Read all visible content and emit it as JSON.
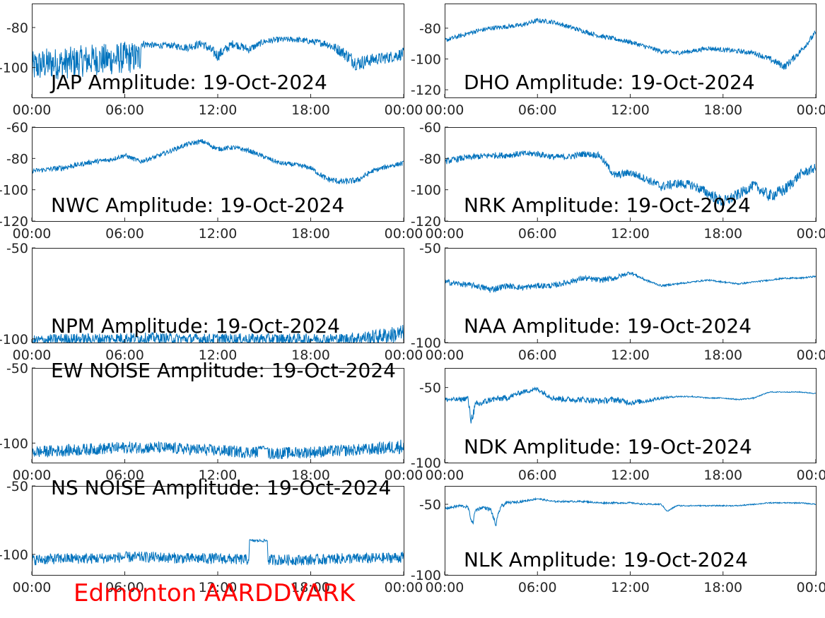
{
  "caption": "Edmonton AARDDVARK",
  "colors": {
    "series": "#0072bd",
    "caption": "#ff0000",
    "axis": "#262626"
  },
  "chart_data": [
    {
      "type": "line",
      "title": "JAP Amplitude: 19-Oct-2024",
      "xticks": [
        "00:00",
        "06:00",
        "12:00",
        "18:00",
        "00:00"
      ],
      "yticks": [
        "-80",
        "-100"
      ],
      "ylim": [
        -115,
        -68
      ],
      "series": [
        {
          "x": [
            0,
            0.5,
            1,
            2,
            3,
            4,
            5,
            6,
            7,
            7.05,
            8,
            9,
            10,
            11,
            12,
            13,
            14,
            15,
            16,
            17,
            18,
            19,
            20,
            21,
            22,
            23,
            24
          ],
          "y": [
            -100,
            -99,
            -98,
            -98,
            -97,
            -96,
            -96,
            -95,
            -95,
            -88,
            -89,
            -89,
            -90,
            -88,
            -94,
            -88,
            -91,
            -87,
            -86,
            -86,
            -87,
            -88,
            -92,
            -98,
            -96,
            -95,
            -93
          ],
          "noise": [
            8,
            8,
            8,
            8,
            8,
            8,
            8,
            8,
            8,
            2,
            1.5,
            1.5,
            2,
            2,
            3,
            2,
            2,
            1.5,
            1.5,
            1.5,
            1.5,
            2,
            3,
            4,
            3,
            3,
            3
          ]
        }
      ]
    },
    {
      "type": "line",
      "title": "DHO Amplitude: 19-Oct-2024",
      "xticks": [
        "00:00",
        "06:00",
        "12:00",
        "18:00",
        "00:00"
      ],
      "yticks": [
        "-80",
        "-100",
        "-120"
      ],
      "ylim": [
        -125,
        -64
      ],
      "series": [
        {
          "x": [
            0,
            1,
            2,
            3,
            4,
            5,
            6,
            7,
            8,
            9,
            10,
            11,
            12,
            13,
            14,
            15,
            16,
            17,
            18,
            19,
            20,
            21,
            22,
            23,
            24
          ],
          "y": [
            -88,
            -85,
            -82,
            -80,
            -79,
            -78,
            -75,
            -76,
            -79,
            -82,
            -85,
            -87,
            -89,
            -92,
            -95,
            -96,
            -95,
            -93,
            -94,
            -95,
            -96,
            -100,
            -105,
            -95,
            -83
          ],
          "noise": [
            1.5,
            1.5,
            1.5,
            1.5,
            1.5,
            1.5,
            1.5,
            1.5,
            1.5,
            1.5,
            1.5,
            1.5,
            1.5,
            1.5,
            1.5,
            1.5,
            1.5,
            1.5,
            1.5,
            1.5,
            1.5,
            2,
            2.5,
            2,
            2
          ]
        }
      ]
    },
    {
      "type": "line",
      "title": "NWC Amplitude: 19-Oct-2024",
      "xticks": [
        "00:00",
        "06:00",
        "12:00",
        "18:00",
        "00:00"
      ],
      "yticks": [
        "-60",
        "-80",
        "-100",
        "-120"
      ],
      "ylim": [
        -120,
        -60
      ],
      "series": [
        {
          "x": [
            0,
            1,
            2,
            3,
            4,
            5,
            6,
            7,
            8,
            9,
            10,
            11,
            12,
            13,
            14,
            15,
            16,
            17,
            18,
            19,
            20,
            21,
            22,
            23,
            24
          ],
          "y": [
            -88,
            -87,
            -86,
            -84,
            -82,
            -81,
            -78,
            -82,
            -79,
            -75,
            -71,
            -69,
            -74,
            -73,
            -75,
            -79,
            -83,
            -84,
            -86,
            -93,
            -95,
            -94,
            -88,
            -85,
            -83
          ],
          "noise": [
            1.5,
            1.5,
            2,
            1.5,
            1.5,
            1.5,
            1.5,
            1.5,
            1.5,
            1.5,
            1.5,
            1.5,
            1.5,
            1.5,
            1.5,
            1.5,
            1.5,
            1.5,
            1.5,
            2,
            2,
            2,
            1.5,
            1.5,
            1.5
          ]
        }
      ]
    },
    {
      "type": "line",
      "title": "NRK Amplitude: 19-Oct-2024",
      "xticks": [
        "00:00",
        "06:00",
        "12:00",
        "18:00",
        "00:00"
      ],
      "yticks": [
        "-60",
        "-80",
        "-100",
        "-120"
      ],
      "ylim": [
        -120,
        -60
      ],
      "series": [
        {
          "x": [
            0,
            1,
            2,
            3,
            4,
            5,
            6,
            7,
            8,
            9,
            10,
            11,
            12,
            13,
            14,
            15,
            16,
            17,
            18,
            19,
            20,
            21,
            22,
            23,
            24
          ],
          "y": [
            -82,
            -80,
            -79,
            -78,
            -78,
            -77,
            -77,
            -79,
            -79,
            -77,
            -78,
            -91,
            -89,
            -93,
            -98,
            -96,
            -97,
            -102,
            -108,
            -103,
            -97,
            -104,
            -100,
            -90,
            -86
          ],
          "noise": [
            2,
            2,
            2,
            2,
            2,
            2,
            2,
            2,
            2,
            2,
            2,
            2.5,
            2.5,
            2.5,
            3,
            3,
            3,
            3.5,
            4,
            3.5,
            3,
            4,
            4,
            3,
            3
          ]
        }
      ]
    },
    {
      "type": "line",
      "title": "NPM Amplitude: 19-Oct-2024",
      "xticks": [
        "00:00",
        "06:00",
        "12:00",
        "18:00",
        "00:00"
      ],
      "yticks": [
        "-50",
        "-100"
      ],
      "ylim": [
        -102,
        -50
      ],
      "series": [
        {
          "x": [
            0,
            2,
            4,
            6,
            8,
            10,
            12,
            14,
            16,
            18,
            20,
            22,
            24
          ],
          "y": [
            -101,
            -100,
            -100,
            -99.5,
            -99.5,
            -100,
            -100,
            -100,
            -100,
            -100,
            -100,
            -99,
            -97
          ],
          "noise": [
            3,
            3,
            3,
            3,
            3,
            3,
            3,
            3,
            3,
            3,
            3,
            4,
            5
          ]
        }
      ]
    },
    {
      "type": "line",
      "title": "NAA Amplitude: 19-Oct-2024",
      "xticks": [
        "00:00",
        "06:00",
        "12:00",
        "18:00",
        "00:00"
      ],
      "yticks": [
        "-50",
        "-100"
      ],
      "ylim": [
        -100,
        -50
      ],
      "series": [
        {
          "x": [
            0,
            1,
            2,
            3,
            4,
            5,
            6,
            7,
            8,
            9,
            10,
            11,
            12,
            13,
            14,
            15,
            16,
            17,
            18,
            19,
            20,
            21,
            22,
            23,
            24
          ],
          "y": [
            -68,
            -69,
            -70,
            -72,
            -70,
            -71,
            -70,
            -70,
            -68,
            -66,
            -67,
            -66,
            -63,
            -67,
            -70,
            -69,
            -68,
            -67,
            -68,
            -69,
            -68,
            -67,
            -66,
            -66,
            -65
          ],
          "noise": [
            1.5,
            1.5,
            1.5,
            2,
            1.5,
            1.5,
            1.5,
            1.5,
            1.5,
            1.5,
            1.5,
            1.5,
            1,
            0.6,
            0.5,
            0.5,
            0.4,
            0.4,
            0.4,
            0.4,
            0.4,
            0.4,
            0.4,
            0.4,
            0.4
          ]
        }
      ]
    },
    {
      "type": "line",
      "title": "EW NOISE Amplitude: 19-Oct-2024",
      "xticks": [
        "00:00",
        "06:00",
        "12:00",
        "18:00",
        "00:00"
      ],
      "yticks": [
        "-50",
        "-100"
      ],
      "ylim": [
        -113,
        -50
      ],
      "series": [
        {
          "x": [
            0,
            2,
            4,
            6,
            8,
            10,
            12,
            14,
            14.6,
            14.65,
            15.2,
            15.25,
            18,
            20,
            22,
            24
          ],
          "y": [
            -106,
            -105,
            -104,
            -103,
            -103,
            -104,
            -105,
            -106,
            -106,
            -103,
            -103,
            -107,
            -106,
            -105,
            -104,
            -102
          ],
          "noise": [
            4,
            4,
            4,
            4,
            4,
            4,
            4,
            4,
            4,
            1,
            1,
            4,
            4,
            4,
            4,
            5
          ]
        }
      ]
    },
    {
      "type": "line",
      "title": "NDK Amplitude: 19-Oct-2024",
      "xticks": [
        "00:00",
        "06:00",
        "12:00",
        "18:00",
        "00:00"
      ],
      "yticks": [
        "-50",
        "-100"
      ],
      "ylim": [
        -100,
        -37
      ],
      "series": [
        {
          "x": [
            0,
            1,
            1.5,
            1.7,
            2,
            2.5,
            3,
            4,
            5,
            6,
            7,
            8,
            9,
            10,
            11,
            12,
            13,
            14,
            15,
            16,
            17,
            18,
            19,
            20,
            21,
            22,
            23,
            24
          ],
          "y": [
            -58,
            -58,
            -57,
            -72,
            -62,
            -60,
            -58,
            -57,
            -53,
            -51,
            -57,
            -58,
            -58,
            -59,
            -58,
            -60,
            -59,
            -57,
            -56,
            -56,
            -57,
            -57,
            -58,
            -57,
            -53,
            -53,
            -53,
            -54
          ],
          "noise": [
            1.5,
            1.5,
            2,
            3,
            3,
            2.5,
            2,
            2,
            1.5,
            1.5,
            2,
            2,
            2,
            2,
            2,
            2,
            1.5,
            1,
            0.5,
            0.5,
            0.4,
            0.4,
            0.4,
            0.4,
            0.3,
            0.3,
            0.3,
            0.3
          ]
        }
      ]
    },
    {
      "type": "line",
      "title": "NS NOISE Amplitude: 19-Oct-2024",
      "xticks": [
        "00:00",
        "06:00",
        "12:00",
        "18:00",
        "00:00"
      ],
      "yticks": [
        "-50",
        "-100"
      ],
      "ylim": [
        -115,
        -50
      ],
      "series": [
        {
          "x": [
            0,
            2,
            4,
            6,
            8,
            10,
            12,
            14,
            14.05,
            14.6,
            14.65,
            15.2,
            15.25,
            18,
            20,
            22,
            24
          ],
          "y": [
            -104,
            -103,
            -103,
            -102,
            -102,
            -103,
            -103,
            -104,
            -90,
            -90,
            -90,
            -90,
            -104,
            -104,
            -103,
            -103,
            -102
          ],
          "noise": [
            4,
            4,
            4,
            4,
            4,
            4,
            4,
            4,
            1,
            1,
            1,
            1,
            4,
            4,
            4,
            4,
            4
          ]
        }
      ]
    },
    {
      "type": "line",
      "title": "NLK Amplitude: 19-Oct-2024",
      "xticks": [
        "00:00",
        "06:00",
        "12:00",
        "18:00",
        "00:00"
      ],
      "yticks": [
        "-50",
        "-100"
      ],
      "ylim": [
        -100,
        -37
      ],
      "series": [
        {
          "x": [
            0,
            1,
            1.5,
            1.8,
            2,
            2.5,
            3,
            3.3,
            3.6,
            4,
            5,
            6,
            7,
            8,
            9,
            10,
            11,
            12,
            13,
            14,
            14.4,
            15,
            16,
            17,
            18,
            19,
            20,
            21,
            22,
            23,
            24
          ],
          "y": [
            -53,
            -51,
            -52,
            -64,
            -54,
            -52,
            -54,
            -65,
            -52,
            -49,
            -48,
            -46,
            -48,
            -48,
            -48,
            -49,
            -49,
            -49,
            -50,
            -50,
            -55,
            -51,
            -51,
            -51,
            -51,
            -51,
            -50,
            -49,
            -49,
            -49,
            -50
          ],
          "noise": [
            1,
            1,
            1,
            2,
            1.5,
            1,
            1.5,
            2,
            1.5,
            1,
            0.8,
            0.6,
            0.6,
            0.6,
            0.6,
            0.6,
            0.6,
            0.6,
            0.5,
            0.5,
            0.5,
            0.5,
            0.4,
            0.4,
            0.4,
            0.4,
            0.4,
            0.4,
            0.4,
            0.4,
            0.4
          ]
        }
      ]
    }
  ]
}
